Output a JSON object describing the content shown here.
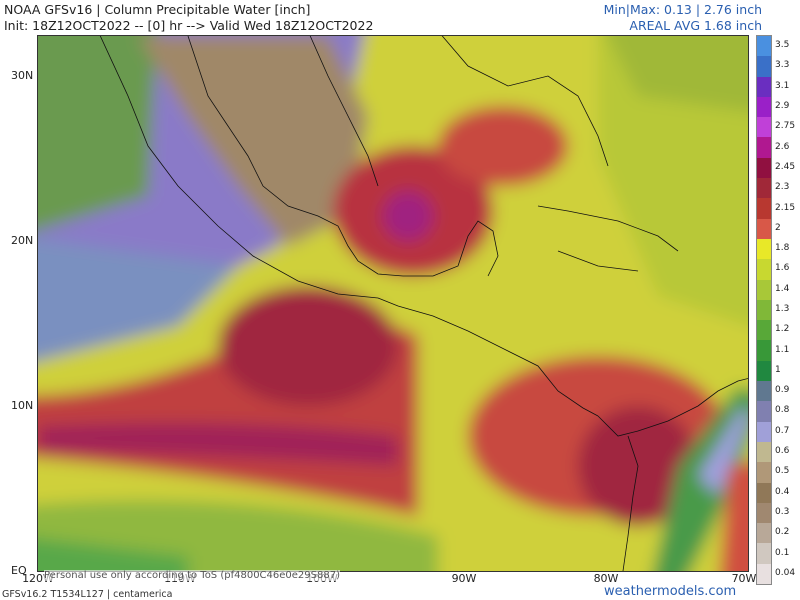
{
  "header": {
    "title_line1": "NOAA GFSv16 | Column Precipitable Water [inch]",
    "title_line2": "Init: 18Z12OCT2022 -- [0] hr --> Valid Wed 18Z12OCT2022",
    "minmax": "Min|Max: 0.13 | 2.76 inch",
    "areal_avg": "AREAL AVG 1.68 inch"
  },
  "lat_ticks": [
    "30N",
    "20N",
    "10N",
    "EQ"
  ],
  "lon_ticks": [
    "120W",
    "110W",
    "100W",
    "90W",
    "80W",
    "70W"
  ],
  "disclaimer": "Personal use only according to ToS (pf4800C46e0e29S887)",
  "footer": {
    "model_info": "GFSv16.2 T1534L127 | centamerica",
    "site": "weathermodels.com"
  },
  "colorbar": {
    "labels": [
      "3.5",
      "3.3",
      "3.1",
      "2.9",
      "2.75",
      "2.6",
      "2.45",
      "2.3",
      "2.15",
      "2",
      "1.8",
      "1.6",
      "1.4",
      "1.3",
      "1.2",
      "1.1",
      "1",
      "0.9",
      "0.8",
      "0.7",
      "0.6",
      "0.5",
      "0.4",
      "0.3",
      "0.2",
      "0.1",
      "0.04"
    ],
    "colors": [
      "#4a90e0",
      "#3a70c8",
      "#6a2ec0",
      "#9a20c8",
      "#c040d8",
      "#b01890",
      "#901040",
      "#a02838",
      "#b83830",
      "#d85848",
      "#e8e828",
      "#c8d830",
      "#a8c838",
      "#80b838",
      "#58a838",
      "#389838",
      "#208840",
      "#607890",
      "#8080b0",
      "#a0a0d8",
      "#c0b890",
      "#b09878",
      "#907858",
      "#a08870",
      "#b8a898",
      "#d0c8c0",
      "#e8e0e0"
    ]
  },
  "map_colors": {
    "land_dry": "#a08060",
    "low": "#8878c8",
    "low2": "#b8b8e8",
    "mid": "#5aa848",
    "moist": "#e0e020",
    "wet": "#d85040",
    "very_wet": "#a02040",
    "extreme": "#b030c0"
  }
}
